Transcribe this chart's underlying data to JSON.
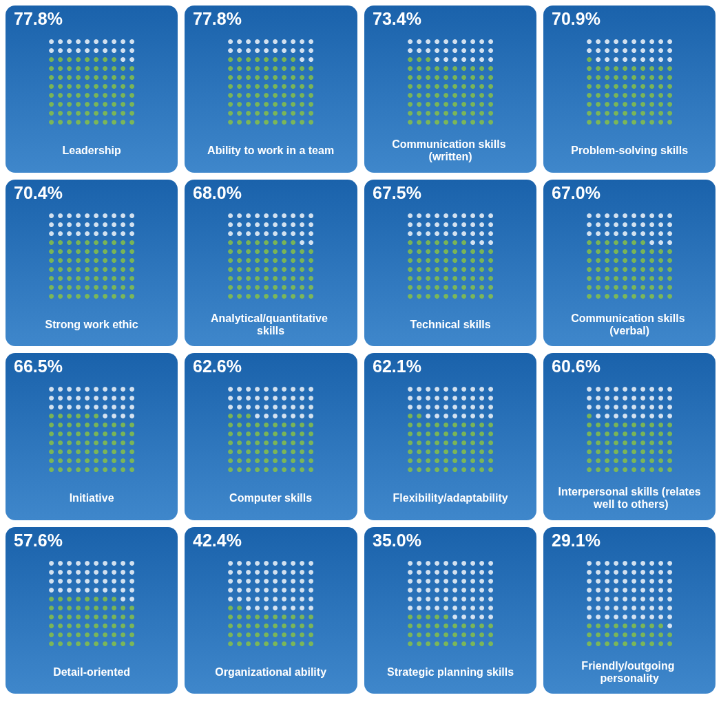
{
  "chart_data": [
    {
      "type": "other",
      "categories": [
        "Leadership"
      ],
      "values": [
        77.8
      ],
      "value_labels": [
        "77.8%"
      ]
    },
    {
      "type": "other",
      "categories": [
        "Ability to work in a team"
      ],
      "values": [
        77.8
      ],
      "value_labels": [
        "77.8%"
      ]
    },
    {
      "type": "other",
      "categories": [
        "Communication skills (written)"
      ],
      "values": [
        73.4
      ],
      "value_labels": [
        "73.4%"
      ]
    },
    {
      "type": "other",
      "categories": [
        "Problem-solving skills"
      ],
      "values": [
        70.9
      ],
      "value_labels": [
        "70.9%"
      ]
    },
    {
      "type": "other",
      "categories": [
        "Strong work ethic"
      ],
      "values": [
        70.4
      ],
      "value_labels": [
        "70.4%"
      ]
    },
    {
      "type": "other",
      "categories": [
        "Analytical/quantitative skills"
      ],
      "values": [
        68.0
      ],
      "value_labels": [
        "68.0%"
      ]
    },
    {
      "type": "other",
      "categories": [
        "Technical skills"
      ],
      "values": [
        67.5
      ],
      "value_labels": [
        "67.5%"
      ]
    },
    {
      "type": "other",
      "categories": [
        "Communication skills (verbal)"
      ],
      "values": [
        67.0
      ],
      "value_labels": [
        "67.0%"
      ]
    },
    {
      "type": "other",
      "categories": [
        "Initiative"
      ],
      "values": [
        66.5
      ],
      "value_labels": [
        "66.5%"
      ]
    },
    {
      "type": "other",
      "categories": [
        "Computer skills"
      ],
      "values": [
        62.6
      ],
      "value_labels": [
        "62.6%"
      ]
    },
    {
      "type": "other",
      "categories": [
        "Flexibility/adaptability"
      ],
      "values": [
        62.1
      ],
      "value_labels": [
        "62.1%"
      ]
    },
    {
      "type": "other",
      "categories": [
        "Interpersonal skills (relates well to others)"
      ],
      "values": [
        60.6
      ],
      "value_labels": [
        "60.6%"
      ]
    },
    {
      "type": "other",
      "categories": [
        "Detail-oriented"
      ],
      "values": [
        57.6
      ],
      "value_labels": [
        "57.6%"
      ]
    },
    {
      "type": "other",
      "categories": [
        "Organizational ability"
      ],
      "values": [
        42.4
      ],
      "value_labels": [
        "42.4%"
      ]
    },
    {
      "type": "other",
      "categories": [
        "Strategic planning skills"
      ],
      "values": [
        35.0
      ],
      "value_labels": [
        "35.0%"
      ]
    },
    {
      "type": "other",
      "categories": [
        "Friendly/outgoing personality"
      ],
      "values": [
        29.1
      ],
      "value_labels": [
        "29.1%"
      ]
    }
  ]
}
